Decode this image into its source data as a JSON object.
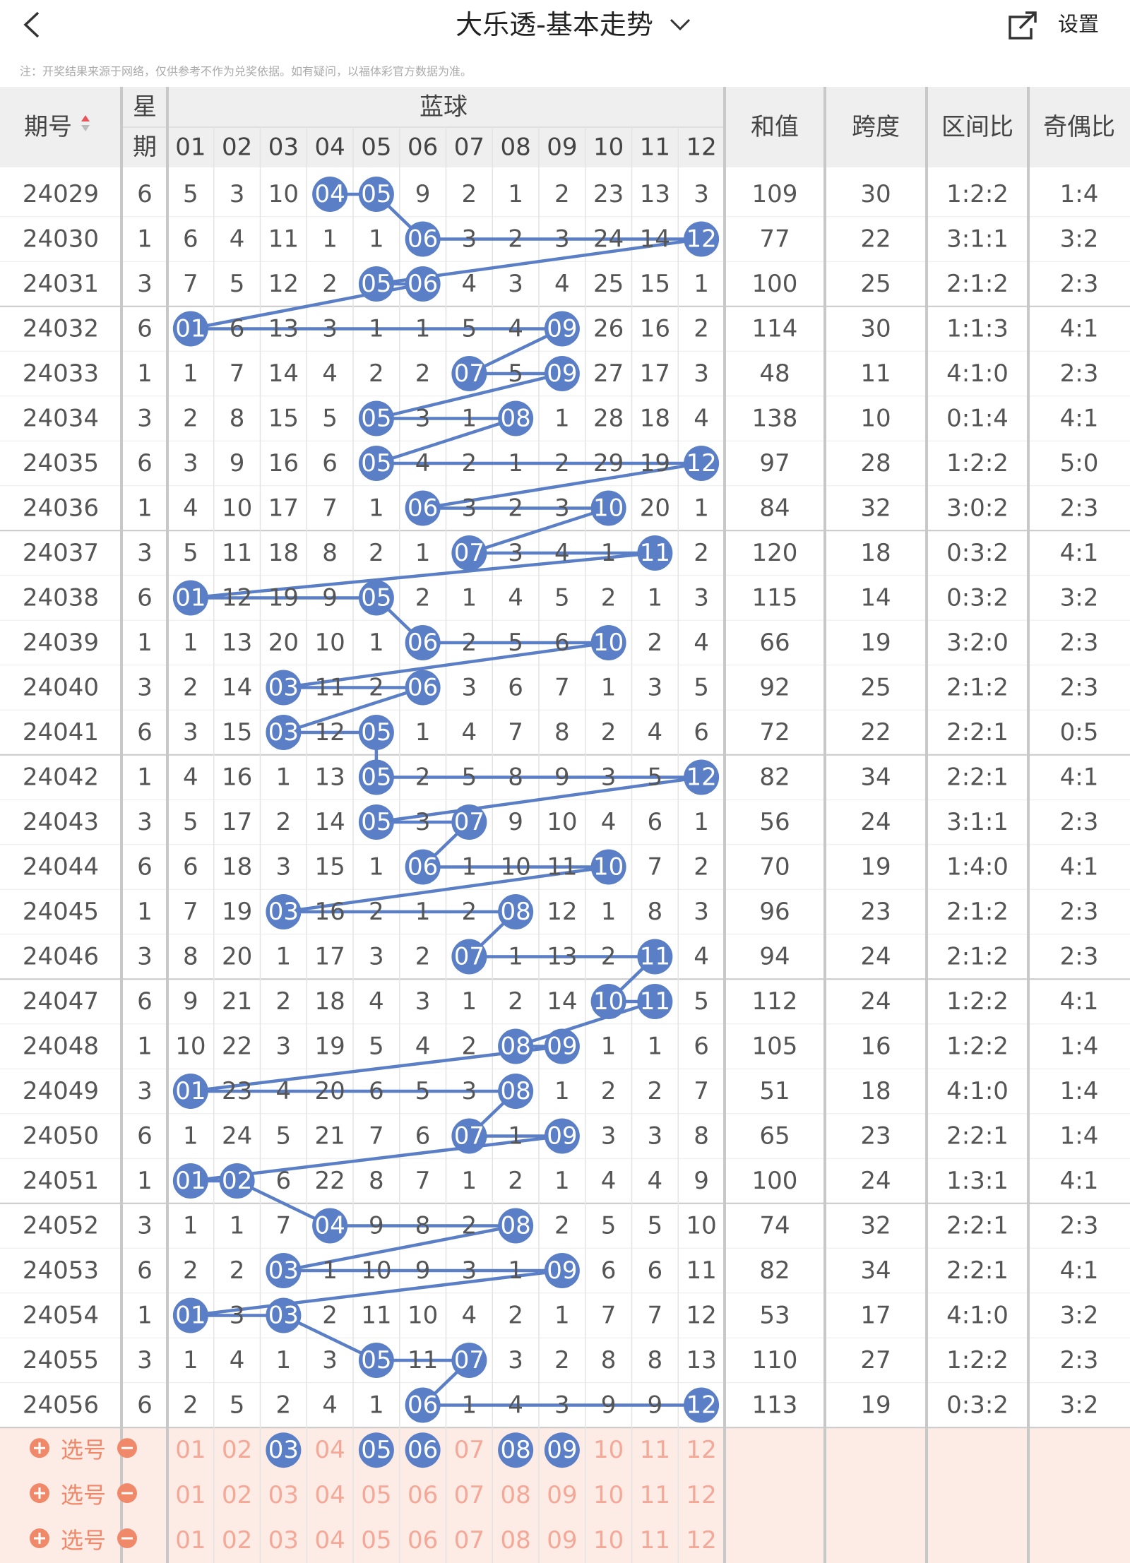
{
  "header": {
    "title": "大乐透-基本走势",
    "settings": "设置",
    "note": "注：开奖结果来源于网络，仅供参考不作为兑奖依据。如有疑问，以福体彩官方数据为准。"
  },
  "table": {
    "columns": {
      "period": "期号",
      "weekday_top": "星",
      "weekday_bottom": "期",
      "blue": "蓝球",
      "balls": [
        "01",
        "02",
        "03",
        "04",
        "05",
        "06",
        "07",
        "08",
        "09",
        "10",
        "11",
        "12"
      ],
      "sum": "和值",
      "span": "跨度",
      "zone_ratio": "区间比",
      "odd_even": "奇偶比"
    },
    "rows": [
      {
        "period": "24029",
        "weekday": 6,
        "cells": [
          5,
          3,
          10,
          {
            "ball": "04"
          },
          {
            "ball": "05"
          },
          9,
          2,
          1,
          2,
          23,
          13,
          3
        ],
        "sum": 109,
        "span": 30,
        "zone_ratio": "1:2:2",
        "odd_even": "1:4"
      },
      {
        "period": "24030",
        "weekday": 1,
        "cells": [
          6,
          4,
          11,
          1,
          1,
          {
            "ball": "06"
          },
          3,
          2,
          3,
          24,
          14,
          {
            "ball": "12"
          }
        ],
        "sum": 77,
        "span": 22,
        "zone_ratio": "3:1:1",
        "odd_even": "3:2"
      },
      {
        "period": "24031",
        "weekday": 3,
        "cells": [
          7,
          5,
          12,
          2,
          {
            "ball": "05"
          },
          {
            "ball": "06"
          },
          4,
          3,
          4,
          25,
          15,
          1
        ],
        "sum": 100,
        "span": 25,
        "zone_ratio": "2:1:2",
        "odd_even": "2:3"
      },
      {
        "period": "24032",
        "weekday": 6,
        "cells": [
          {
            "ball": "01"
          },
          6,
          13,
          3,
          1,
          1,
          5,
          4,
          {
            "ball": "09"
          },
          26,
          16,
          2
        ],
        "sum": 114,
        "span": 30,
        "zone_ratio": "1:1:3",
        "odd_even": "4:1"
      },
      {
        "period": "24033",
        "weekday": 1,
        "cells": [
          1,
          7,
          14,
          4,
          2,
          2,
          {
            "ball": "07"
          },
          5,
          {
            "ball": "09"
          },
          27,
          17,
          3
        ],
        "sum": 48,
        "span": 11,
        "zone_ratio": "4:1:0",
        "odd_even": "2:3"
      },
      {
        "period": "24034",
        "weekday": 3,
        "cells": [
          2,
          8,
          15,
          5,
          {
            "ball": "05"
          },
          3,
          1,
          {
            "ball": "08"
          },
          1,
          28,
          18,
          4
        ],
        "sum": 138,
        "span": 10,
        "zone_ratio": "0:1:4",
        "odd_even": "4:1"
      },
      {
        "period": "24035",
        "weekday": 6,
        "cells": [
          3,
          9,
          16,
          6,
          {
            "ball": "05"
          },
          4,
          2,
          1,
          2,
          29,
          19,
          {
            "ball": "12"
          }
        ],
        "sum": 97,
        "span": 28,
        "zone_ratio": "1:2:2",
        "odd_even": "5:0"
      },
      {
        "period": "24036",
        "weekday": 1,
        "cells": [
          4,
          10,
          17,
          7,
          1,
          {
            "ball": "06"
          },
          3,
          2,
          3,
          {
            "ball": "10"
          },
          20,
          1
        ],
        "sum": 84,
        "span": 32,
        "zone_ratio": "3:0:2",
        "odd_even": "2:3"
      },
      {
        "period": "24037",
        "weekday": 3,
        "cells": [
          5,
          11,
          18,
          8,
          2,
          1,
          {
            "ball": "07"
          },
          3,
          4,
          1,
          {
            "ball": "11"
          },
          2
        ],
        "sum": 120,
        "span": 18,
        "zone_ratio": "0:3:2",
        "odd_even": "4:1"
      },
      {
        "period": "24038",
        "weekday": 6,
        "cells": [
          {
            "ball": "01"
          },
          12,
          19,
          9,
          {
            "ball": "05"
          },
          2,
          1,
          4,
          5,
          2,
          1,
          3
        ],
        "sum": 115,
        "span": 14,
        "zone_ratio": "0:3:2",
        "odd_even": "3:2"
      },
      {
        "period": "24039",
        "weekday": 1,
        "cells": [
          1,
          13,
          20,
          10,
          1,
          {
            "ball": "06"
          },
          2,
          5,
          6,
          {
            "ball": "10"
          },
          2,
          4
        ],
        "sum": 66,
        "span": 19,
        "zone_ratio": "3:2:0",
        "odd_even": "2:3"
      },
      {
        "period": "24040",
        "weekday": 3,
        "cells": [
          2,
          14,
          {
            "ball": "03"
          },
          11,
          2,
          {
            "ball": "06"
          },
          3,
          6,
          7,
          1,
          3,
          5
        ],
        "sum": 92,
        "span": 25,
        "zone_ratio": "2:1:2",
        "odd_even": "2:3"
      },
      {
        "period": "24041",
        "weekday": 6,
        "cells": [
          3,
          15,
          {
            "ball": "03"
          },
          12,
          {
            "ball": "05"
          },
          1,
          4,
          7,
          8,
          2,
          4,
          6
        ],
        "sum": 72,
        "span": 22,
        "zone_ratio": "2:2:1",
        "odd_even": "0:5"
      },
      {
        "period": "24042",
        "weekday": 1,
        "cells": [
          4,
          16,
          1,
          13,
          {
            "ball": "05"
          },
          2,
          5,
          8,
          9,
          3,
          5,
          {
            "ball": "12"
          }
        ],
        "sum": 82,
        "span": 34,
        "zone_ratio": "2:2:1",
        "odd_even": "4:1"
      },
      {
        "period": "24043",
        "weekday": 3,
        "cells": [
          5,
          17,
          2,
          14,
          {
            "ball": "05"
          },
          3,
          {
            "ball": "07"
          },
          9,
          10,
          4,
          6,
          1
        ],
        "sum": 56,
        "span": 24,
        "zone_ratio": "3:1:1",
        "odd_even": "2:3"
      },
      {
        "period": "24044",
        "weekday": 6,
        "cells": [
          6,
          18,
          3,
          15,
          1,
          {
            "ball": "06"
          },
          1,
          10,
          11,
          {
            "ball": "10"
          },
          7,
          2
        ],
        "sum": 70,
        "span": 19,
        "zone_ratio": "1:4:0",
        "odd_even": "4:1"
      },
      {
        "period": "24045",
        "weekday": 1,
        "cells": [
          7,
          19,
          {
            "ball": "03"
          },
          16,
          2,
          1,
          2,
          {
            "ball": "08"
          },
          12,
          1,
          8,
          3
        ],
        "sum": 96,
        "span": 23,
        "zone_ratio": "2:1:2",
        "odd_even": "2:3"
      },
      {
        "period": "24046",
        "weekday": 3,
        "cells": [
          8,
          20,
          1,
          17,
          3,
          2,
          {
            "ball": "07"
          },
          1,
          13,
          2,
          {
            "ball": "11"
          },
          4
        ],
        "sum": 94,
        "span": 24,
        "zone_ratio": "2:1:2",
        "odd_even": "2:3"
      },
      {
        "period": "24047",
        "weekday": 6,
        "cells": [
          9,
          21,
          2,
          18,
          4,
          3,
          1,
          2,
          14,
          {
            "ball": "10"
          },
          {
            "ball": "11"
          },
          5
        ],
        "sum": 112,
        "span": 24,
        "zone_ratio": "1:2:2",
        "odd_even": "4:1"
      },
      {
        "period": "24048",
        "weekday": 1,
        "cells": [
          10,
          22,
          3,
          19,
          5,
          4,
          2,
          {
            "ball": "08"
          },
          {
            "ball": "09"
          },
          1,
          1,
          6
        ],
        "sum": 105,
        "span": 16,
        "zone_ratio": "1:2:2",
        "odd_even": "1:4"
      },
      {
        "period": "24049",
        "weekday": 3,
        "cells": [
          {
            "ball": "01"
          },
          23,
          4,
          20,
          6,
          5,
          3,
          {
            "ball": "08"
          },
          1,
          2,
          2,
          7
        ],
        "sum": 51,
        "span": 18,
        "zone_ratio": "4:1:0",
        "odd_even": "1:4"
      },
      {
        "period": "24050",
        "weekday": 6,
        "cells": [
          1,
          24,
          5,
          21,
          7,
          6,
          {
            "ball": "07"
          },
          1,
          {
            "ball": "09"
          },
          3,
          3,
          8
        ],
        "sum": 65,
        "span": 23,
        "zone_ratio": "2:2:1",
        "odd_even": "1:4"
      },
      {
        "period": "24051",
        "weekday": 1,
        "cells": [
          {
            "ball": "01"
          },
          {
            "ball": "02"
          },
          6,
          22,
          8,
          7,
          1,
          2,
          1,
          4,
          4,
          9
        ],
        "sum": 100,
        "span": 24,
        "zone_ratio": "1:3:1",
        "odd_even": "4:1"
      },
      {
        "period": "24052",
        "weekday": 3,
        "cells": [
          1,
          1,
          7,
          {
            "ball": "04"
          },
          9,
          8,
          2,
          {
            "ball": "08"
          },
          2,
          5,
          5,
          10
        ],
        "sum": 74,
        "span": 32,
        "zone_ratio": "2:2:1",
        "odd_even": "2:3"
      },
      {
        "period": "24053",
        "weekday": 6,
        "cells": [
          2,
          2,
          {
            "ball": "03"
          },
          1,
          10,
          9,
          3,
          1,
          {
            "ball": "09"
          },
          6,
          6,
          11
        ],
        "sum": 82,
        "span": 34,
        "zone_ratio": "2:2:1",
        "odd_even": "4:1"
      },
      {
        "period": "24054",
        "weekday": 1,
        "cells": [
          {
            "ball": "01"
          },
          3,
          {
            "ball": "03"
          },
          2,
          11,
          10,
          4,
          2,
          1,
          7,
          7,
          12
        ],
        "sum": 53,
        "span": 17,
        "zone_ratio": "4:1:0",
        "odd_even": "3:2"
      },
      {
        "period": "24055",
        "weekday": 3,
        "cells": [
          1,
          4,
          1,
          3,
          {
            "ball": "05"
          },
          11,
          {
            "ball": "07"
          },
          3,
          2,
          8,
          8,
          13
        ],
        "sum": 110,
        "span": 27,
        "zone_ratio": "1:2:2",
        "odd_even": "2:3"
      },
      {
        "period": "24056",
        "weekday": 6,
        "cells": [
          2,
          5,
          2,
          4,
          1,
          {
            "ball": "06"
          },
          1,
          4,
          3,
          9,
          9,
          {
            "ball": "12"
          }
        ],
        "sum": 113,
        "span": 19,
        "zone_ratio": "0:3:2",
        "odd_even": "3:2"
      }
    ]
  },
  "picker": {
    "label": "选号",
    "rows": [
      {
        "selected": [
          "03",
          "05",
          "06",
          "08",
          "09"
        ]
      },
      {
        "selected": []
      },
      {
        "selected": []
      }
    ]
  }
}
